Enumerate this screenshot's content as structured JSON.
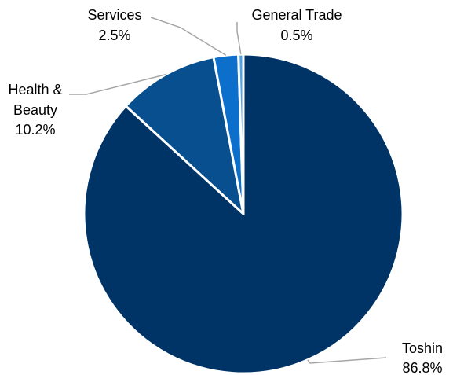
{
  "chart_data": {
    "type": "pie",
    "start_angle_deg": 0,
    "direction": "clockwise",
    "slices": [
      {
        "label": "Toshin",
        "value": 86.8,
        "value_label": "86.8%",
        "color": "#003366"
      },
      {
        "label": "Health & Beauty",
        "label_lines": [
          "Health &",
          "Beauty"
        ],
        "value": 10.2,
        "value_label": "10.2%",
        "color": "#074F8F"
      },
      {
        "label": "Services",
        "value": 2.5,
        "value_label": "2.5%",
        "color": "#0B6FCB"
      },
      {
        "label": "General Trade",
        "value": 0.5,
        "value_label": "0.5%",
        "color": "#4FA3E6"
      }
    ],
    "legend": "none",
    "slice_border_color": "#ffffff",
    "leader_line_color": "#A6A6A6"
  }
}
